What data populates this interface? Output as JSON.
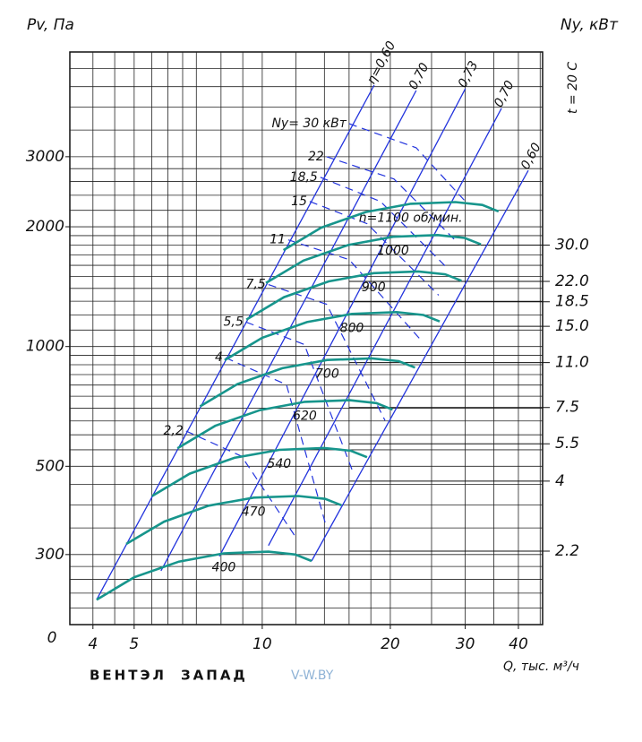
{
  "chart_data": {
    "type": "line",
    "xscale": "log",
    "yscale": "log",
    "y2scale": "log",
    "y_label": "Pv, Па",
    "y2_label": "Ny, кВт",
    "x_label": "Q, тыс. м³/ч",
    "annotation": "t = 20 С",
    "origin_label": "0",
    "xlim": [
      3.53,
      45.6
    ],
    "ylim": [
      200,
      5500
    ],
    "y2lim": [
      1.175,
      156
    ],
    "xticks": [
      4,
      5,
      10,
      20,
      30,
      40
    ],
    "yticks": [
      300,
      500,
      1000,
      2000,
      3000
    ],
    "y2ticks": [
      {
        "value": 30,
        "label": "30.0"
      },
      {
        "value": 22,
        "label": "22.0"
      },
      {
        "value": 18.5,
        "label": "18.5"
      },
      {
        "value": 15,
        "label": "15.0"
      },
      {
        "value": 11,
        "label": "11.0"
      },
      {
        "value": 7.5,
        "label": "7.5"
      },
      {
        "value": 5.5,
        "label": "5.5"
      },
      4,
      {
        "value": 2.2,
        "label": "2.2"
      }
    ],
    "grid": true,
    "xgrid": [
      4,
      4.5,
      5,
      5.5,
      6,
      6.5,
      7,
      8,
      9,
      10,
      12,
      14,
      16,
      18,
      20,
      25,
      30,
      35,
      40,
      45
    ],
    "ygrid": [
      220,
      240,
      260,
      280,
      300,
      350,
      400,
      450,
      500,
      550,
      600,
      650,
      700,
      750,
      800,
      850,
      900,
      950,
      1000,
      1100,
      1200,
      1300,
      1400,
      1500,
      1600,
      1700,
      1800,
      1900,
      2000,
      2200,
      2400,
      2600,
      2800,
      3000,
      3500,
      4000,
      4500,
      5000
    ],
    "series": [
      {
        "name": "400",
        "color": "#17958c",
        "x": [
          4.08,
          5.0,
          6.37,
          8.12,
          10.34,
          11.96,
          13.06
        ],
        "values": [
          231,
          263,
          288,
          302,
          305,
          300,
          289
        ]
      },
      {
        "name": "470",
        "color": "#17958c",
        "x": [
          4.79,
          5.88,
          7.48,
          9.54,
          12.15,
          14.05,
          15.35
        ],
        "values": [
          319,
          363,
          398,
          417,
          421,
          414,
          399
        ]
      },
      {
        "name": "540",
        "color": "#17958c",
        "x": [
          5.51,
          6.75,
          8.6,
          10.96,
          13.96,
          16.15,
          17.63
        ],
        "values": [
          421,
          479,
          525,
          550,
          556,
          547,
          527
        ]
      },
      {
        "name": "620",
        "color": "#17958c",
        "x": [
          6.32,
          7.75,
          9.87,
          12.59,
          16.03,
          18.54,
          20.24
        ],
        "values": [
          555,
          632,
          692,
          726,
          733,
          721,
          694
        ]
      },
      {
        "name": "700",
        "color": "#17958c",
        "x": [
          7.14,
          8.75,
          11.15,
          14.21,
          18.1,
          20.93,
          22.86
        ],
        "values": [
          707,
          805,
          882,
          925,
          934,
          919,
          885
        ]
      },
      {
        "name": "800",
        "color": "#17958c",
        "x": [
          8.16,
          10.0,
          12.74,
          16.24,
          20.68,
          23.92,
          26.12
        ],
        "values": [
          924,
          1052,
          1152,
          1208,
          1220,
          1200,
          1156
        ]
      },
      {
        "name": "900",
        "color": "#17958c",
        "x": [
          9.18,
          11.25,
          14.33,
          18.27,
          23.27,
          26.91,
          29.39
        ],
        "values": [
          1169,
          1331,
          1458,
          1529,
          1544,
          1519,
          1463
        ]
      },
      {
        "name": "1000",
        "color": "#17958c",
        "x": [
          10.2,
          12.5,
          15.93,
          20.3,
          25.85,
          29.9,
          32.65
        ],
        "values": [
          1444,
          1644,
          1800,
          1888,
          1906,
          1875,
          1806
        ]
      },
      {
        "name": "n=1100 об/мин.",
        "color": "#17958c",
        "x": [
          11.22,
          13.75,
          17.52,
          22.33,
          28.44,
          32.89,
          35.92
        ],
        "values": [
          1747,
          1989,
          2178,
          2284,
          2307,
          2269,
          2186
        ]
      }
    ],
    "efficiency_lines": {
      "color": "#2233dd",
      "series": [
        {
          "name": "η=0,60",
          "x": [
            4.08,
            18.33
          ],
          "values": [
            231,
            4539
          ]
        },
        {
          "name": "0,70",
          "x": [
            5.78,
            23.0
          ],
          "values": [
            273,
            4400
          ]
        },
        {
          "name": "0,73",
          "x": [
            7.93,
            30.03
          ],
          "values": [
            297,
            4450
          ]
        },
        {
          "name": "0,70",
          "x": [
            10.34,
            36.5
          ],
          "values": [
            316,
            3972
          ]
        },
        {
          "name": "0,60",
          "x": [
            13.06,
            42.2
          ],
          "values": [
            289,
            2770
          ]
        }
      ]
    },
    "power_lines": {
      "color": "#2233dd",
      "dashed": true,
      "series": [
        {
          "name": "Ny= 30 кВт",
          "x": [
            16.0,
            23.0,
            30.03
          ],
          "values": [
            3633,
            3159,
            2316
          ]
        },
        {
          "name": "22",
          "x": [
            14.17,
            20.39,
            28.62
          ],
          "values": [
            3000,
            2637,
            1835
          ]
        },
        {
          "name": "18,5",
          "x": [
            13.7,
            18.96,
            27.28
          ],
          "values": [
            2664,
            2316,
            1571
          ]
        },
        {
          "name": "15",
          "x": [
            12.93,
            17.63,
            25.98
          ],
          "values": [
            2316,
            2036,
            1345
          ]
        },
        {
          "name": "11",
          "x": [
            11.51,
            16.0,
            23.58
          ],
          "values": [
            1854,
            1654,
            1039
          ]
        },
        {
          "name": "7,5",
          "x": [
            10.34,
            14.17,
            19.43
          ],
          "values": [
            1431,
            1277,
            652
          ]
        },
        {
          "name": "5,5",
          "x": [
            9.16,
            12.56,
            16.4
          ],
          "values": [
            1152,
            1012,
            478
          ]
        },
        {
          "name": "4",
          "x": [
            8.2,
            11.4,
            14.17
          ],
          "values": [
            937,
            802,
            350
          ]
        },
        {
          "name": "2,2",
          "x": [
            6.62,
            8.94,
            11.96
          ],
          "values": [
            613,
            530,
            333
          ]
        }
      ]
    },
    "brand": [
      "ВЕНТЭЛ",
      "ЗАПАД"
    ],
    "site": "V-W.BY"
  }
}
